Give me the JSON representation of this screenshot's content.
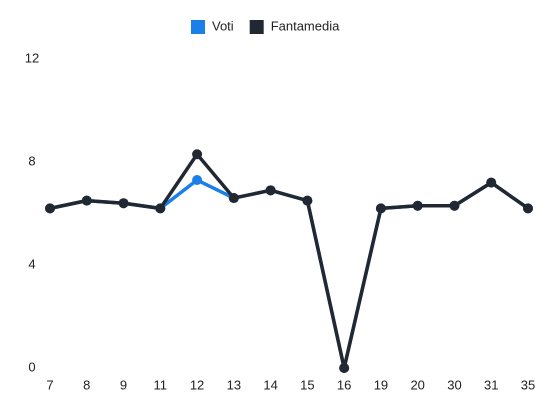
{
  "chart_data": {
    "type": "line",
    "categories": [
      "7",
      "8",
      "9",
      "11",
      "12",
      "13",
      "14",
      "15",
      "16",
      "19",
      "20",
      "30",
      "31",
      "35"
    ],
    "series": [
      {
        "name": "Voti",
        "color": "#1a7fe8",
        "values": [
          6.2,
          6.5,
          6.4,
          6.2,
          7.3,
          6.6,
          6.9,
          6.5,
          0,
          6.2,
          6.3,
          6.3,
          7.2,
          6.2
        ]
      },
      {
        "name": "Fantamedia",
        "color": "#222831",
        "values": [
          6.2,
          6.5,
          6.4,
          6.2,
          8.3,
          6.6,
          6.9,
          6.5,
          0,
          6.2,
          6.3,
          6.3,
          7.2,
          6.2
        ]
      }
    ],
    "ylim": [
      0,
      12
    ],
    "yticks": [
      0,
      4,
      8,
      12
    ],
    "grid": false,
    "legend": "top"
  }
}
